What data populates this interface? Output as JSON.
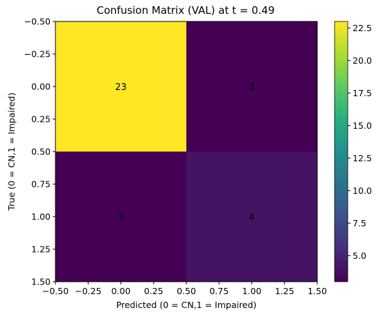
{
  "chart_data": {
    "type": "heatmap",
    "title": "Confusion Matrix (VAL) at t = 0.49",
    "xlabel": "Predicted (0 = CN,1 = Impaired)",
    "ylabel": "True (0 = CN,1 = Impaired)",
    "matrix": [
      [
        23,
        3
      ],
      [
        3,
        4
      ]
    ],
    "xlim": [
      -0.5,
      1.5
    ],
    "ylim": [
      1.5,
      -0.5
    ],
    "x_ticks": [
      "−0.50",
      "−0.25",
      "0.00",
      "0.25",
      "0.50",
      "0.75",
      "1.00",
      "1.25",
      "1.50"
    ],
    "y_ticks": [
      "−0.50",
      "−0.25",
      "0.00",
      "0.25",
      "0.50",
      "0.75",
      "1.00",
      "1.25",
      "1.50"
    ],
    "colormap": "viridis",
    "colorbar": {
      "range": [
        3,
        23
      ],
      "ticks": [
        "5.0",
        "7.5",
        "10.0",
        "12.5",
        "15.0",
        "17.5",
        "20.0",
        "22.5"
      ]
    },
    "grid": false
  }
}
